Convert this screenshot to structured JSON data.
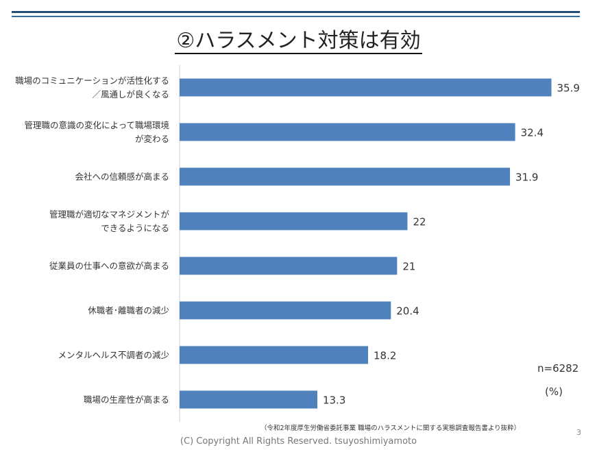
{
  "slide": {
    "title": "②ハラスメント対策は有効",
    "sample_size": "n=6282",
    "unit": "(%)",
    "source": "（令和2年度厚生労働省委託事業 職場のハラスメントに関する実態調査報告書より抜粋）",
    "page_number": "3",
    "copyright": "(C) Copyright All Rights Reserved. tsuyoshimiyamoto"
  },
  "colors": {
    "bar": "#4f81bd",
    "rule": "#1f4e79",
    "axis": "#d0d0d0"
  },
  "chart_data": {
    "type": "bar",
    "orientation": "horizontal",
    "categories": [
      [
        "職場のコミュニケーションが活性化する",
        "／風通しが良くなる"
      ],
      [
        "管理職の意識の変化によって職場環境",
        "が変わる"
      ],
      [
        "会社への信頼感が高まる"
      ],
      [
        "管理職が適切なマネジメントが",
        "できるようになる"
      ],
      [
        "従業員の仕事への意欲が高まる"
      ],
      [
        "休職者･離職者の減少"
      ],
      [
        "メンタルヘルス不調者の減少"
      ],
      [
        "職場の生産性が高まる"
      ]
    ],
    "value_labels": [
      "35.9",
      "32.4",
      "31.9",
      "22",
      "21",
      "20.4",
      "18.2",
      "13.3"
    ],
    "values": [
      35.9,
      32.4,
      31.9,
      22,
      21,
      20.4,
      18.2,
      13.3
    ],
    "xlim": [
      0,
      36
    ],
    "grid": false,
    "legend": "none"
  }
}
